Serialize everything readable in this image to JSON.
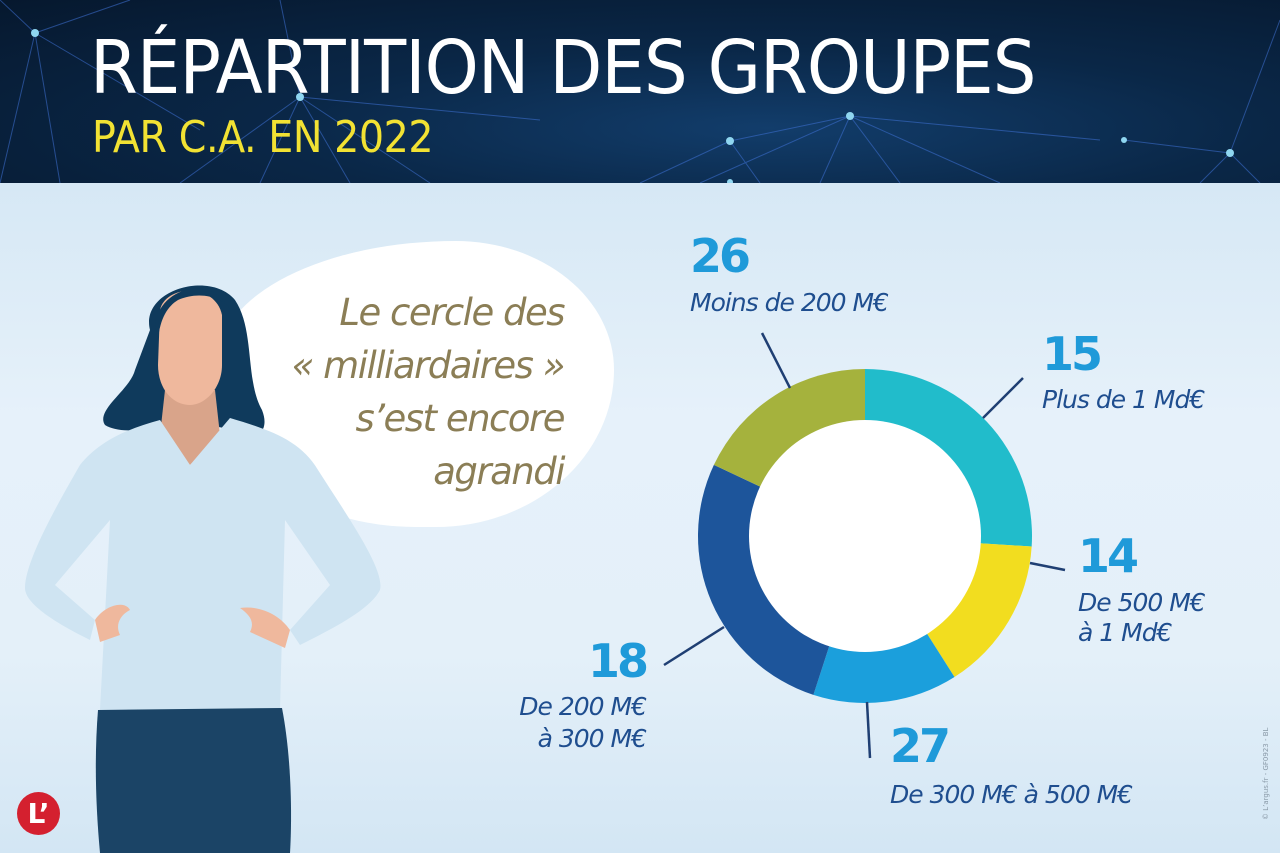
{
  "header": {
    "title": "RÉPARTITION DES GROUPES",
    "subtitle": "PAR C.A. EN 2022"
  },
  "speech_bubble": {
    "lines": [
      "Le cercle des",
      "« milliardaires »",
      "s’est encore",
      "agrandi"
    ]
  },
  "logo": {
    "text": "L’"
  },
  "credit": "© L’argus.fr - GF0923 - BL",
  "colors": {
    "title": "#ffffff",
    "subtitle": "#f2e233",
    "number": "#1f9ad9",
    "label": "#1f4e8f",
    "bubble_text": "#8b7e56",
    "leader_line": "#1f3f73"
  },
  "chart_data": {
    "type": "pie",
    "variant": "donut",
    "title": "Répartition des groupes par C.A. en 2022",
    "start_angle_deg": 270,
    "direction": "clockwise",
    "categories": [
      "Moins de 200 M€",
      "Plus de 1 Md€",
      "De 500 M€ à 1 Md€",
      "De 300 M€ à 500 M€",
      "De 200 M€ à 300 M€"
    ],
    "values": [
      26,
      15,
      14,
      27,
      18
    ],
    "colors": [
      "#21bccb",
      "#f2dd1f",
      "#1b9fdc",
      "#1d559b",
      "#a5b23d"
    ],
    "labels": [
      {
        "value": "26",
        "text_lines": [
          "Moins de 200 M€"
        ]
      },
      {
        "value": "15",
        "text_lines": [
          "Plus de 1 Md€"
        ]
      },
      {
        "value": "14",
        "text_lines": [
          "De 500 M€",
          "à 1 Md€"
        ]
      },
      {
        "value": "27",
        "text_lines": [
          "De 300 M€ à 500 M€"
        ]
      },
      {
        "value": "18",
        "text_lines": [
          "De 200 M€",
          "à 300 M€"
        ]
      }
    ],
    "legend": "none",
    "grid": false
  }
}
